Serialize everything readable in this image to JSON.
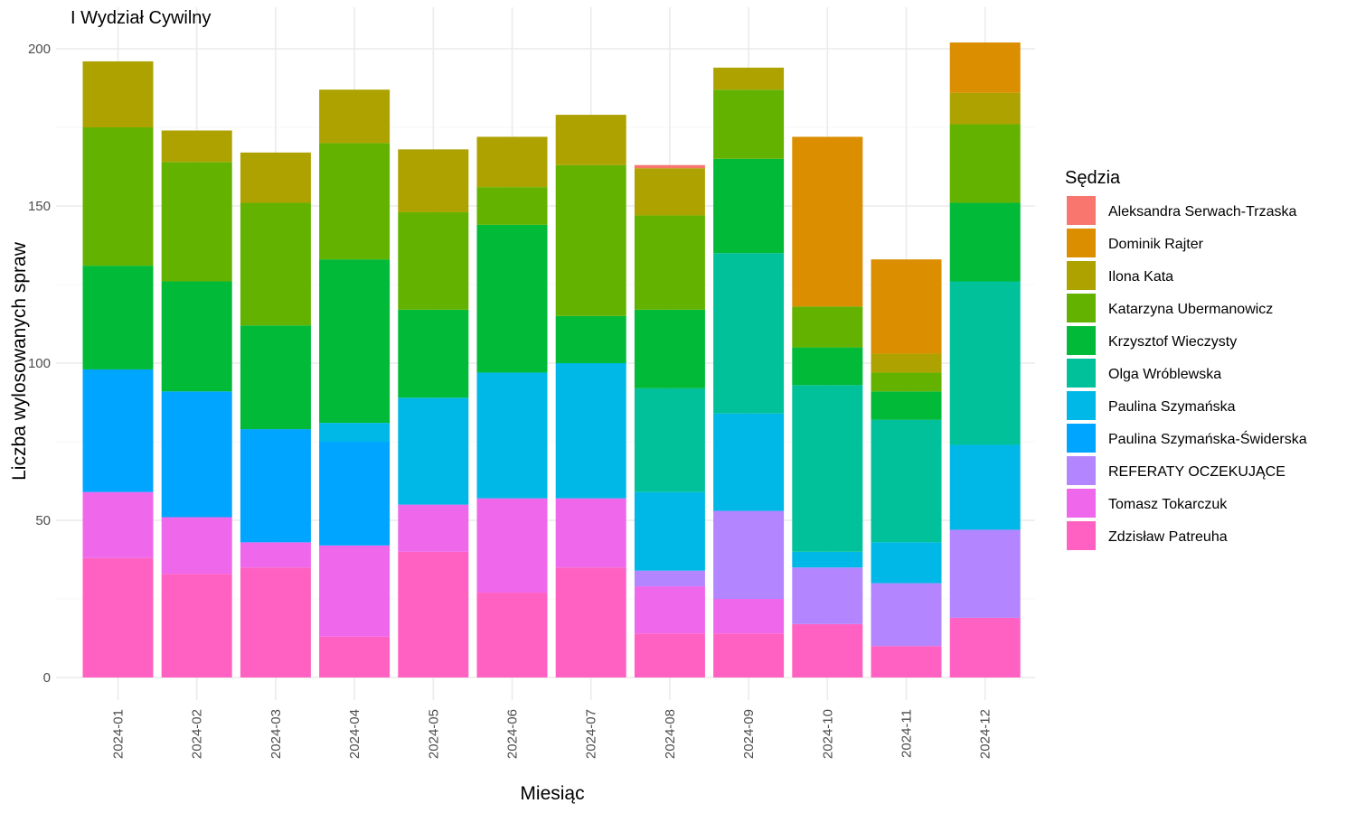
{
  "chart_data": {
    "type": "bar",
    "stacked": true,
    "title": "I Wydział Cywilny",
    "xlabel": "Miesiąc",
    "ylabel": "Liczba wylosowanych spraw",
    "ylim": [
      0,
      210
    ],
    "yticks": [
      0,
      50,
      100,
      150,
      200
    ],
    "grid": true,
    "legend_title": "Sędzia",
    "legend_position": "right",
    "categories": [
      "2024-01",
      "2024-02",
      "2024-03",
      "2024-04",
      "2024-05",
      "2024-06",
      "2024-07",
      "2024-08",
      "2024-09",
      "2024-10",
      "2024-11",
      "2024-12"
    ],
    "series": [
      {
        "name": "Zdzisław Patreuha",
        "color": "#FF61C3",
        "values": [
          38,
          33,
          35,
          13,
          40,
          27,
          35,
          14,
          14,
          17,
          10,
          19
        ]
      },
      {
        "name": "Tomasz Tokarczuk",
        "color": "#EF67EB",
        "values": [
          21,
          18,
          8,
          29,
          15,
          30,
          22,
          15,
          11,
          0,
          0,
          0
        ]
      },
      {
        "name": "REFERATY OCZEKUJĄCE",
        "color": "#B385FF",
        "values": [
          0,
          0,
          0,
          0,
          0,
          0,
          0,
          5,
          28,
          18,
          20,
          28
        ]
      },
      {
        "name": "Paulina Szymańska-Świderska",
        "color": "#00A5FF",
        "values": [
          39,
          40,
          36,
          33,
          0,
          0,
          0,
          0,
          0,
          0,
          0,
          0
        ]
      },
      {
        "name": "Paulina Szymańska",
        "color": "#00B8E7",
        "values": [
          0,
          0,
          0,
          6,
          34,
          40,
          43,
          25,
          31,
          5,
          13,
          27
        ]
      },
      {
        "name": "Olga Wróblewska",
        "color": "#00C19A",
        "values": [
          0,
          0,
          0,
          0,
          0,
          0,
          0,
          33,
          51,
          53,
          39,
          52
        ]
      },
      {
        "name": "Krzysztof Wieczysty",
        "color": "#00BA38",
        "values": [
          33,
          35,
          33,
          52,
          28,
          47,
          15,
          25,
          30,
          12,
          9,
          25
        ]
      },
      {
        "name": "Katarzyna Ubermanowicz",
        "color": "#64B200",
        "values": [
          44,
          38,
          39,
          37,
          31,
          12,
          48,
          30,
          22,
          13,
          6,
          25
        ]
      },
      {
        "name": "Ilona Kata",
        "color": "#AEA200",
        "values": [
          21,
          10,
          16,
          17,
          20,
          16,
          16,
          15,
          7,
          0,
          6,
          10
        ]
      },
      {
        "name": "Dominik Rajter",
        "color": "#DB8E00",
        "values": [
          0,
          0,
          0,
          0,
          0,
          0,
          0,
          0,
          0,
          54,
          30,
          16
        ]
      },
      {
        "name": "Aleksandra Serwach-Trzaska",
        "color": "#F8766D",
        "values": [
          0,
          0,
          0,
          0,
          0,
          0,
          0,
          1,
          0,
          0,
          0,
          0
        ]
      }
    ],
    "legend_order": [
      "Aleksandra Serwach-Trzaska",
      "Dominik Rajter",
      "Ilona Kata",
      "Katarzyna Ubermanowicz",
      "Krzysztof Wieczysty",
      "Olga Wróblewska",
      "Paulina Szymańska",
      "Paulina Szymańska-Świderska",
      "REFERATY OCZEKUJĄCE",
      "Tomasz Tokarczuk",
      "Zdzisław Patreuha"
    ]
  }
}
